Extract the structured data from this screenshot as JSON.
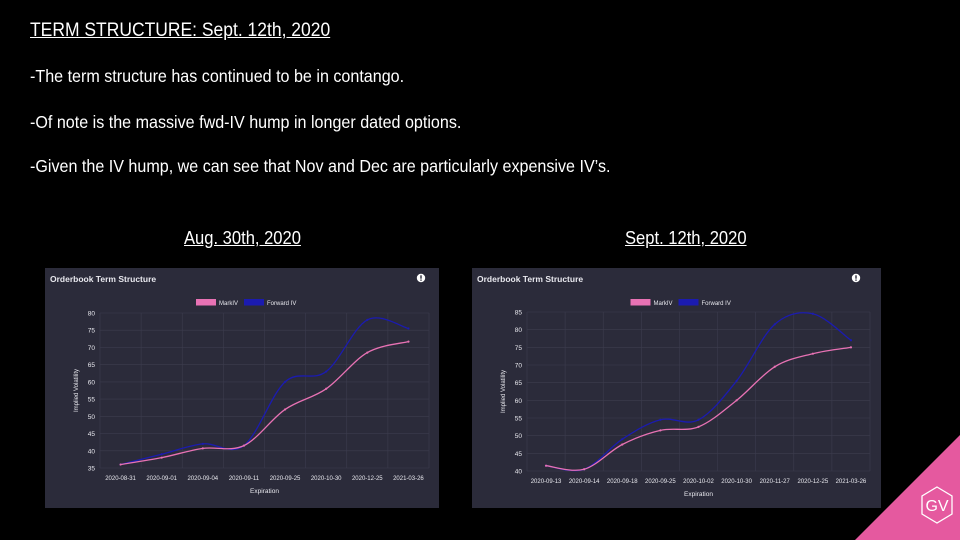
{
  "slide": {
    "title": "TERM STRUCTURE: Sept. 12th, 2020",
    "bullets": [
      "-The term structure has continued to be in contango.",
      "-Of note is the massive fwd-IV hump in longer dated options.",
      "-Given the IV hump, we can see that Nov and Dec are particularly expensive IV’s."
    ],
    "left_caption": "Aug. 30th, 2020",
    "right_caption": "Sept. 12th, 2020",
    "logo_text": "GV"
  },
  "colors": {
    "background": "#000000",
    "panel": "#2b2b3a",
    "markiv": "#e872b4",
    "forward_iv": "#1b1bb0",
    "corner": "#e5599f"
  },
  "chart_data": [
    {
      "type": "line",
      "title": "Orderbook Term Structure",
      "xlabel": "Expiration",
      "ylabel": "Implied Volatility",
      "categories": [
        "2020-08-31",
        "2020-09-01",
        "2020-09-04",
        "2020-09-11",
        "2020-09-25",
        "2020-10-30",
        "2020-12-25",
        "2021-03-26"
      ],
      "ylim": [
        35,
        80
      ],
      "yticks": [
        35,
        40,
        45,
        50,
        55,
        60,
        65,
        70,
        75,
        80
      ],
      "legend_position": "top-center",
      "grid": true,
      "series": [
        {
          "name": "MarkIV",
          "values": [
            36,
            38,
            40.7,
            41.5,
            52,
            58,
            68.5,
            71.7
          ]
        },
        {
          "name": "Forward IV",
          "values": [
            36,
            39,
            42,
            41.5,
            60,
            63,
            78,
            75.5
          ]
        }
      ]
    },
    {
      "type": "line",
      "title": "Orderbook Term Structure",
      "xlabel": "Expiration",
      "ylabel": "Implied Volatility",
      "categories": [
        "2020-09-13",
        "2020-09-14",
        "2020-09-18",
        "2020-09-25",
        "2020-10-02",
        "2020-10-30",
        "2020-11-27",
        "2020-12-25",
        "2021-03-26"
      ],
      "ylim": [
        40,
        85
      ],
      "yticks": [
        40,
        45,
        50,
        55,
        60,
        65,
        70,
        75,
        80,
        85
      ],
      "legend_position": "top-center",
      "grid": true,
      "series": [
        {
          "name": "MarkIV",
          "values": [
            41.5,
            40.5,
            47.5,
            51.5,
            52.5,
            60,
            69.5,
            73.2,
            75
          ]
        },
        {
          "name": "Forward IV",
          "values": [
            41.5,
            40.5,
            49,
            54.5,
            54.5,
            65.5,
            81.5,
            84.5,
            77
          ]
        }
      ]
    }
  ]
}
